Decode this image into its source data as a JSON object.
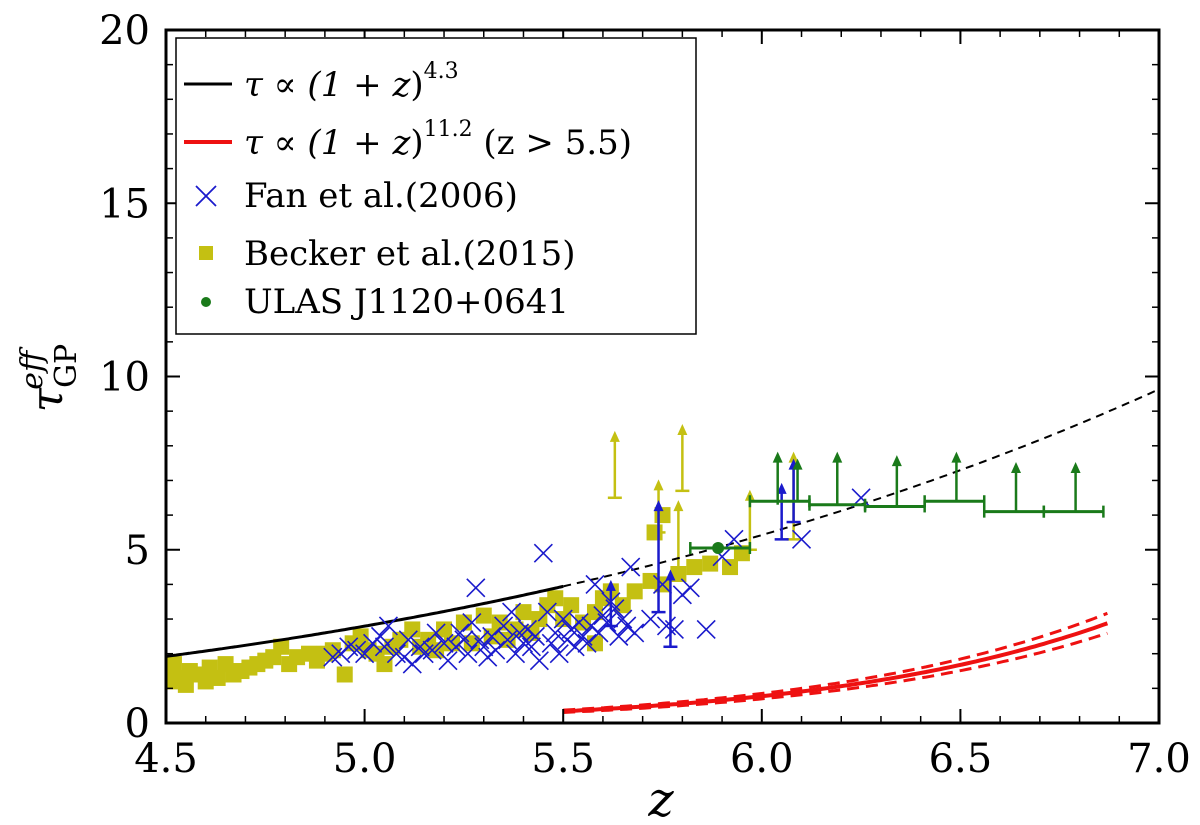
{
  "chart_data": {
    "type": "scatter",
    "xlabel": "z",
    "ylabel": "τ",
    "ylabel_sub": "GP",
    "ylabel_sup": "eff",
    "xlim": [
      4.5,
      7.0
    ],
    "ylim": [
      0,
      20
    ],
    "x_ticks": [
      "4.5",
      "5.0",
      "5.5",
      "6.0",
      "6.5",
      "7.0"
    ],
    "y_ticks": [
      "0",
      "5",
      "10",
      "15",
      "20"
    ],
    "colors": {
      "black_fit": "#000000",
      "red_fit": "#ee1111",
      "fan": "#1a1acc",
      "becker": "#c4c012",
      "ulas": "#1a7a1a"
    },
    "legend": [
      {
        "key": "black_fit",
        "pre": "τ ∝ (1 + ",
        "var": "z",
        "post": ")",
        "sup": "4.3",
        "tail": ""
      },
      {
        "key": "red_fit",
        "pre": "τ ∝ (1 + ",
        "var": "z",
        "post": ")",
        "sup": "11.2",
        "tail": "  (z > 5.5)"
      },
      {
        "key": "fan",
        "label": "Fan et al.(2006)"
      },
      {
        "key": "becker",
        "label": "Becker et al.(2015)"
      },
      {
        "key": "ulas",
        "label": "ULAS J1120+0641"
      }
    ],
    "series": [
      {
        "name": "τ ∝ (1+z)^4.3",
        "kind": "power_law",
        "coef": 0.00126,
        "exponent": 4.3,
        "solid_range": [
          4.5,
          5.5
        ],
        "dashed_range": [
          5.5,
          7.0
        ]
      },
      {
        "name": "τ ∝ (1+z)^11.2 (z>5.5)",
        "kind": "power_law",
        "coef": 2.655e-10,
        "exponent": 11.2,
        "range": [
          5.5,
          6.87
        ],
        "upper_coef_factor": 1.1,
        "lower_coef_factor": 0.9
      },
      {
        "name": "Fan et al.(2006)",
        "points": [
          [
            4.92,
            1.9
          ],
          [
            4.94,
            2.0
          ],
          [
            4.96,
            2.2
          ],
          [
            4.98,
            2.1
          ],
          [
            5.0,
            2.0
          ],
          [
            5.02,
            2.3
          ],
          [
            5.04,
            2.5
          ],
          [
            5.05,
            2.2
          ],
          [
            5.06,
            2.8
          ],
          [
            5.08,
            2.0
          ],
          [
            5.1,
            1.9
          ],
          [
            5.11,
            2.4
          ],
          [
            5.12,
            1.7
          ],
          [
            5.14,
            2.2
          ],
          [
            5.15,
            2.0
          ],
          [
            5.17,
            2.1
          ],
          [
            5.18,
            2.6
          ],
          [
            5.2,
            2.3
          ],
          [
            5.21,
            1.8
          ],
          [
            5.23,
            2.2
          ],
          [
            5.24,
            2.6
          ],
          [
            5.25,
            2.4
          ],
          [
            5.26,
            2.0
          ],
          [
            5.27,
            2.9
          ],
          [
            5.28,
            3.9
          ],
          [
            5.29,
            2.4
          ],
          [
            5.3,
            2.2
          ],
          [
            5.31,
            1.9
          ],
          [
            5.32,
            2.5
          ],
          [
            5.33,
            2.1
          ],
          [
            5.35,
            2.8
          ],
          [
            5.36,
            2.4
          ],
          [
            5.37,
            3.2
          ],
          [
            5.38,
            2.0
          ],
          [
            5.39,
            2.6
          ],
          [
            5.4,
            2.3
          ],
          [
            5.41,
            2.7
          ],
          [
            5.42,
            2.2
          ],
          [
            5.43,
            2.5
          ],
          [
            5.44,
            1.8
          ],
          [
            5.45,
            4.9
          ],
          [
            5.46,
            3.2
          ],
          [
            5.47,
            2.3
          ],
          [
            5.48,
            2.6
          ],
          [
            5.49,
            2.0
          ],
          [
            5.5,
            3.0
          ],
          [
            5.51,
            2.4
          ],
          [
            5.52,
            2.7
          ],
          [
            5.53,
            2.2
          ],
          [
            5.54,
            2.9
          ],
          [
            5.55,
            2.5
          ],
          [
            5.56,
            2.3
          ],
          [
            5.57,
            2.8
          ],
          [
            5.58,
            4.0
          ],
          [
            5.59,
            2.6
          ],
          [
            5.6,
            3.1
          ],
          [
            5.61,
            2.9
          ],
          [
            5.62,
            3.5
          ],
          [
            5.63,
            3.3
          ],
          [
            5.64,
            2.5
          ],
          [
            5.65,
            3.0
          ],
          [
            5.66,
            2.8
          ],
          [
            5.67,
            4.5
          ],
          [
            5.68,
            2.6
          ],
          [
            5.72,
            3.0
          ],
          [
            5.75,
            4.0
          ],
          [
            5.76,
            2.8
          ],
          [
            5.78,
            2.7
          ],
          [
            5.8,
            3.7
          ],
          [
            5.82,
            3.9
          ],
          [
            5.86,
            2.7
          ],
          [
            5.9,
            4.8
          ],
          [
            5.93,
            5.3
          ],
          [
            6.1,
            5.3
          ],
          [
            6.25,
            6.5
          ]
        ],
        "limit_bars": [
          [
            5.74,
            3.2,
            6.2
          ],
          [
            5.62,
            2.8,
            3.9
          ],
          [
            5.77,
            2.2,
            4.2
          ],
          [
            6.08,
            5.8,
            7.4
          ],
          [
            6.05,
            5.3,
            6.7
          ]
        ]
      },
      {
        "name": "Becker et al.(2015)",
        "points": [
          [
            4.5,
            1.4
          ],
          [
            4.51,
            1.2
          ],
          [
            4.52,
            1.7
          ],
          [
            4.54,
            1.3
          ],
          [
            4.55,
            1.1
          ],
          [
            4.56,
            1.5
          ],
          [
            4.58,
            1.4
          ],
          [
            4.6,
            1.2
          ],
          [
            4.61,
            1.6
          ],
          [
            4.63,
            1.3
          ],
          [
            4.65,
            1.7
          ],
          [
            4.67,
            1.4
          ],
          [
            4.69,
            1.5
          ],
          [
            4.71,
            1.6
          ],
          [
            4.73,
            1.7
          ],
          [
            4.75,
            1.8
          ],
          [
            4.77,
            1.9
          ],
          [
            4.79,
            2.2
          ],
          [
            4.81,
            1.7
          ],
          [
            4.83,
            1.9
          ],
          [
            4.86,
            2.0
          ],
          [
            4.88,
            1.8
          ],
          [
            4.9,
            2.0
          ],
          [
            4.92,
            2.1
          ],
          [
            4.95,
            1.4
          ],
          [
            4.97,
            2.3
          ],
          [
            4.99,
            2.5
          ],
          [
            5.01,
            2.1
          ],
          [
            5.03,
            2.0
          ],
          [
            5.05,
            1.7
          ],
          [
            5.07,
            2.2
          ],
          [
            5.09,
            2.4
          ],
          [
            5.12,
            2.7
          ],
          [
            5.14,
            2.2
          ],
          [
            5.16,
            2.4
          ],
          [
            5.18,
            2.1
          ],
          [
            5.2,
            2.7
          ],
          [
            5.22,
            2.3
          ],
          [
            5.25,
            2.9
          ],
          [
            5.27,
            2.3
          ],
          [
            5.3,
            3.1
          ],
          [
            5.32,
            2.5
          ],
          [
            5.34,
            2.9
          ],
          [
            5.36,
            2.4
          ],
          [
            5.38,
            2.7
          ],
          [
            5.4,
            3.2
          ],
          [
            5.42,
            2.6
          ],
          [
            5.44,
            3.0
          ],
          [
            5.46,
            3.4
          ],
          [
            5.48,
            3.6
          ],
          [
            5.5,
            3.0
          ],
          [
            5.52,
            3.4
          ],
          [
            5.55,
            2.9
          ],
          [
            5.58,
            3.2
          ],
          [
            5.6,
            3.6
          ],
          [
            5.62,
            3.8
          ],
          [
            5.65,
            3.4
          ],
          [
            5.68,
            3.8
          ],
          [
            5.72,
            4.1
          ],
          [
            5.75,
            4.0
          ],
          [
            5.79,
            4.3
          ],
          [
            5.83,
            4.5
          ],
          [
            5.87,
            4.6
          ],
          [
            5.92,
            4.5
          ],
          [
            5.95,
            4.9
          ],
          [
            5.58,
            2.3
          ],
          [
            5.73,
            5.5
          ],
          [
            5.75,
            6.0
          ]
        ],
        "limit_bars": [
          [
            5.63,
            6.5,
            8.2
          ],
          [
            5.74,
            5.5,
            6.8
          ],
          [
            5.8,
            6.7,
            8.4
          ],
          [
            5.79,
            4.4,
            6.2
          ],
          [
            5.97,
            5.0,
            6.5
          ],
          [
            6.08,
            5.3,
            7.6
          ]
        ]
      },
      {
        "name": "ULAS J1120+0641",
        "points": [
          [
            5.89,
            5.05
          ]
        ],
        "steps": [
          [
            5.82,
            5.97,
            5.05
          ],
          [
            5.97,
            6.12,
            6.4
          ],
          [
            6.12,
            6.26,
            6.3
          ],
          [
            6.26,
            6.41,
            6.25
          ],
          [
            6.41,
            6.56,
            6.4
          ],
          [
            6.56,
            6.71,
            6.1
          ],
          [
            6.71,
            6.86,
            6.1
          ]
        ],
        "arrows": [
          [
            6.04,
            6.3,
            7.6
          ],
          [
            6.09,
            6.4,
            7.4
          ],
          [
            6.19,
            6.3,
            7.6
          ],
          [
            6.34,
            6.25,
            7.5
          ],
          [
            6.49,
            6.4,
            7.6
          ],
          [
            6.64,
            6.1,
            7.3
          ],
          [
            6.79,
            6.1,
            7.3
          ]
        ]
      }
    ]
  }
}
